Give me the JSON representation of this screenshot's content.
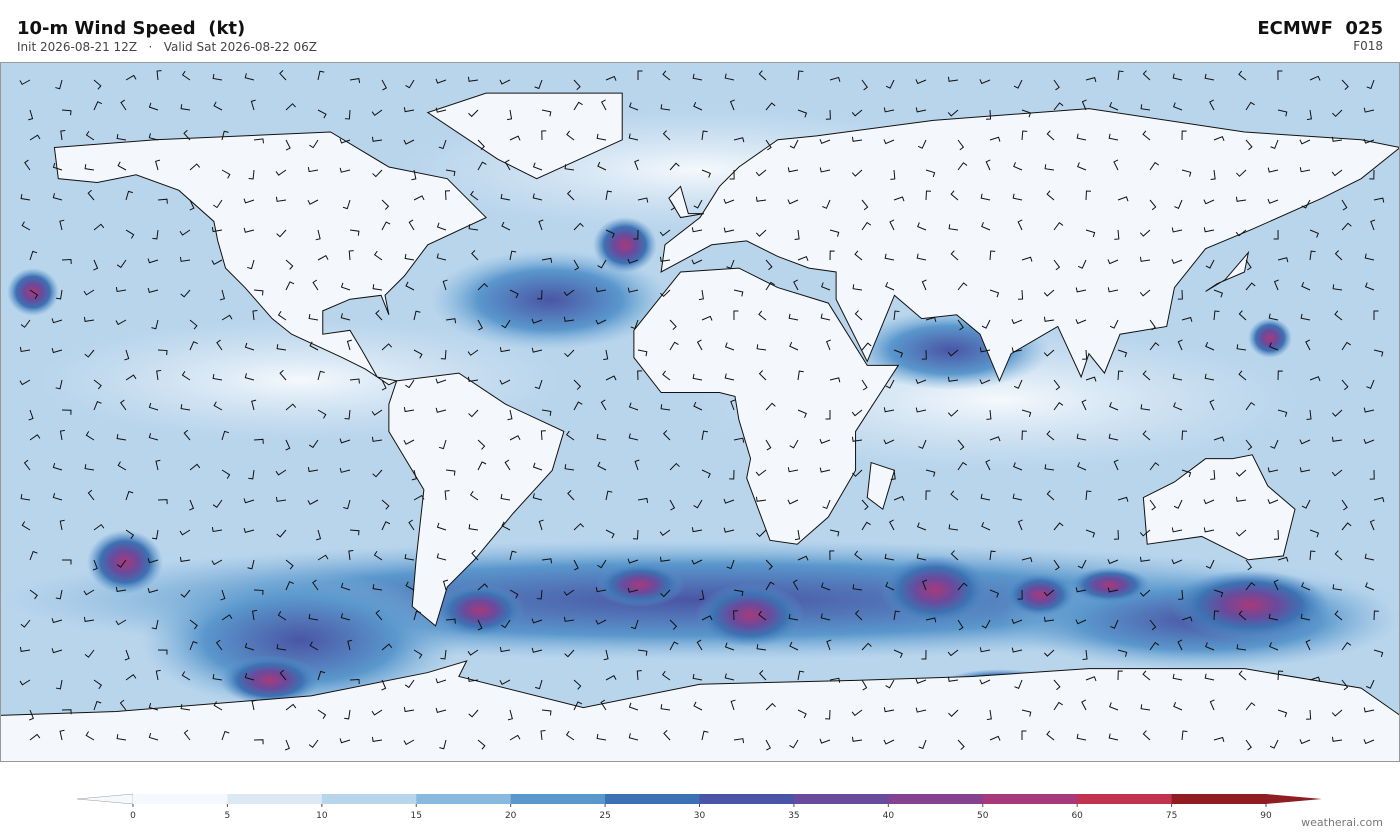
{
  "header": {
    "title": "10-m Wind Speed  (kt)",
    "subtitle": "Init 2026-08-21 12Z   ·   Valid Sat 2026-08-22 06Z",
    "model": "ECMWF  025",
    "forecast_hour": "F018"
  },
  "colorbar": {
    "ticks": [
      0,
      5,
      10,
      15,
      20,
      25,
      30,
      35,
      40,
      50,
      60,
      75,
      90
    ],
    "colors": [
      "#f5f9fd",
      "#dce9f5",
      "#b9d5ec",
      "#88b9df",
      "#5a97cc",
      "#3c72b3",
      "#4a55a5",
      "#6a4a9c",
      "#84428f",
      "#a73a7a",
      "#c2334f",
      "#8f1d21"
    ]
  },
  "footer": {
    "watermark": "weatherai.com"
  }
}
